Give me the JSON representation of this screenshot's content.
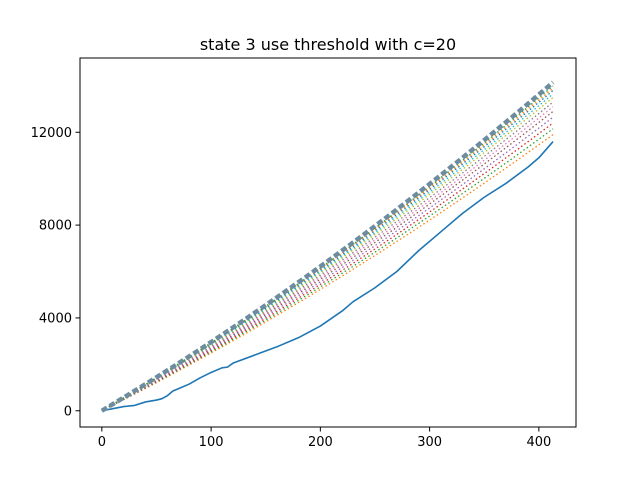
{
  "chart_data": {
    "type": "line",
    "title": "state 3 use threshold with c=20",
    "xlabel": "",
    "ylabel": "",
    "xlim": [
      -20,
      434
    ],
    "ylim": [
      -700,
      15200
    ],
    "x_ticks": [
      0,
      100,
      200,
      300,
      400
    ],
    "y_ticks": [
      0,
      4000,
      8000,
      12000
    ],
    "x_tick_labels": [
      "0",
      "100",
      "200",
      "300",
      "400"
    ],
    "y_tick_labels": [
      "0",
      "4000",
      "8000",
      "12000"
    ],
    "grid": false,
    "legend": "none",
    "x_max": 413,
    "series": [
      {
        "style": "solid",
        "color": "#1f77b4",
        "points": [
          [
            0,
            0
          ],
          [
            10,
            90
          ],
          [
            20,
            180
          ],
          [
            30,
            230
          ],
          [
            40,
            380
          ],
          [
            50,
            460
          ],
          [
            55,
            520
          ],
          [
            60,
            650
          ],
          [
            65,
            850
          ],
          [
            70,
            950
          ],
          [
            80,
            1150
          ],
          [
            90,
            1420
          ],
          [
            100,
            1650
          ],
          [
            110,
            1850
          ],
          [
            115,
            1880
          ],
          [
            120,
            2050
          ],
          [
            140,
            2400
          ],
          [
            160,
            2750
          ],
          [
            180,
            3150
          ],
          [
            200,
            3650
          ],
          [
            220,
            4300
          ],
          [
            230,
            4700
          ],
          [
            250,
            5300
          ],
          [
            270,
            6000
          ],
          [
            290,
            6900
          ],
          [
            310,
            7700
          ],
          [
            330,
            8500
          ],
          [
            350,
            9200
          ],
          [
            370,
            9800
          ],
          [
            390,
            10500
          ],
          [
            400,
            10900
          ],
          [
            413,
            11600
          ]
        ]
      },
      {
        "style": "dotted",
        "color": "#ff7f0e",
        "end": 11900
      },
      {
        "style": "dotted",
        "color": "#2ca02c",
        "end": 12150
      },
      {
        "style": "dotted",
        "color": "#d62728",
        "end": 12400
      },
      {
        "style": "dotted",
        "color": "#9467bd",
        "end": 12650
      },
      {
        "style": "dotted",
        "color": "#8c564b",
        "end": 12900
      },
      {
        "style": "dotted",
        "color": "#e377c2",
        "end": 13100
      },
      {
        "style": "dotted",
        "color": "#7f7f7f",
        "end": 13300
      },
      {
        "style": "dotted",
        "color": "#bcbd22",
        "end": 13500
      },
      {
        "style": "dotted",
        "color": "#17becf",
        "end": 13650
      },
      {
        "style": "dotted",
        "color": "#1f77b4",
        "end": 13800
      },
      {
        "style": "dotted",
        "color": "#ff7f0e",
        "end": 13900
      },
      {
        "style": "dotted",
        "color": "#2ca02c",
        "end": 14000
      },
      {
        "style": "dashed-thick",
        "color": "#6e8ca0",
        "end": 14150
      }
    ]
  }
}
